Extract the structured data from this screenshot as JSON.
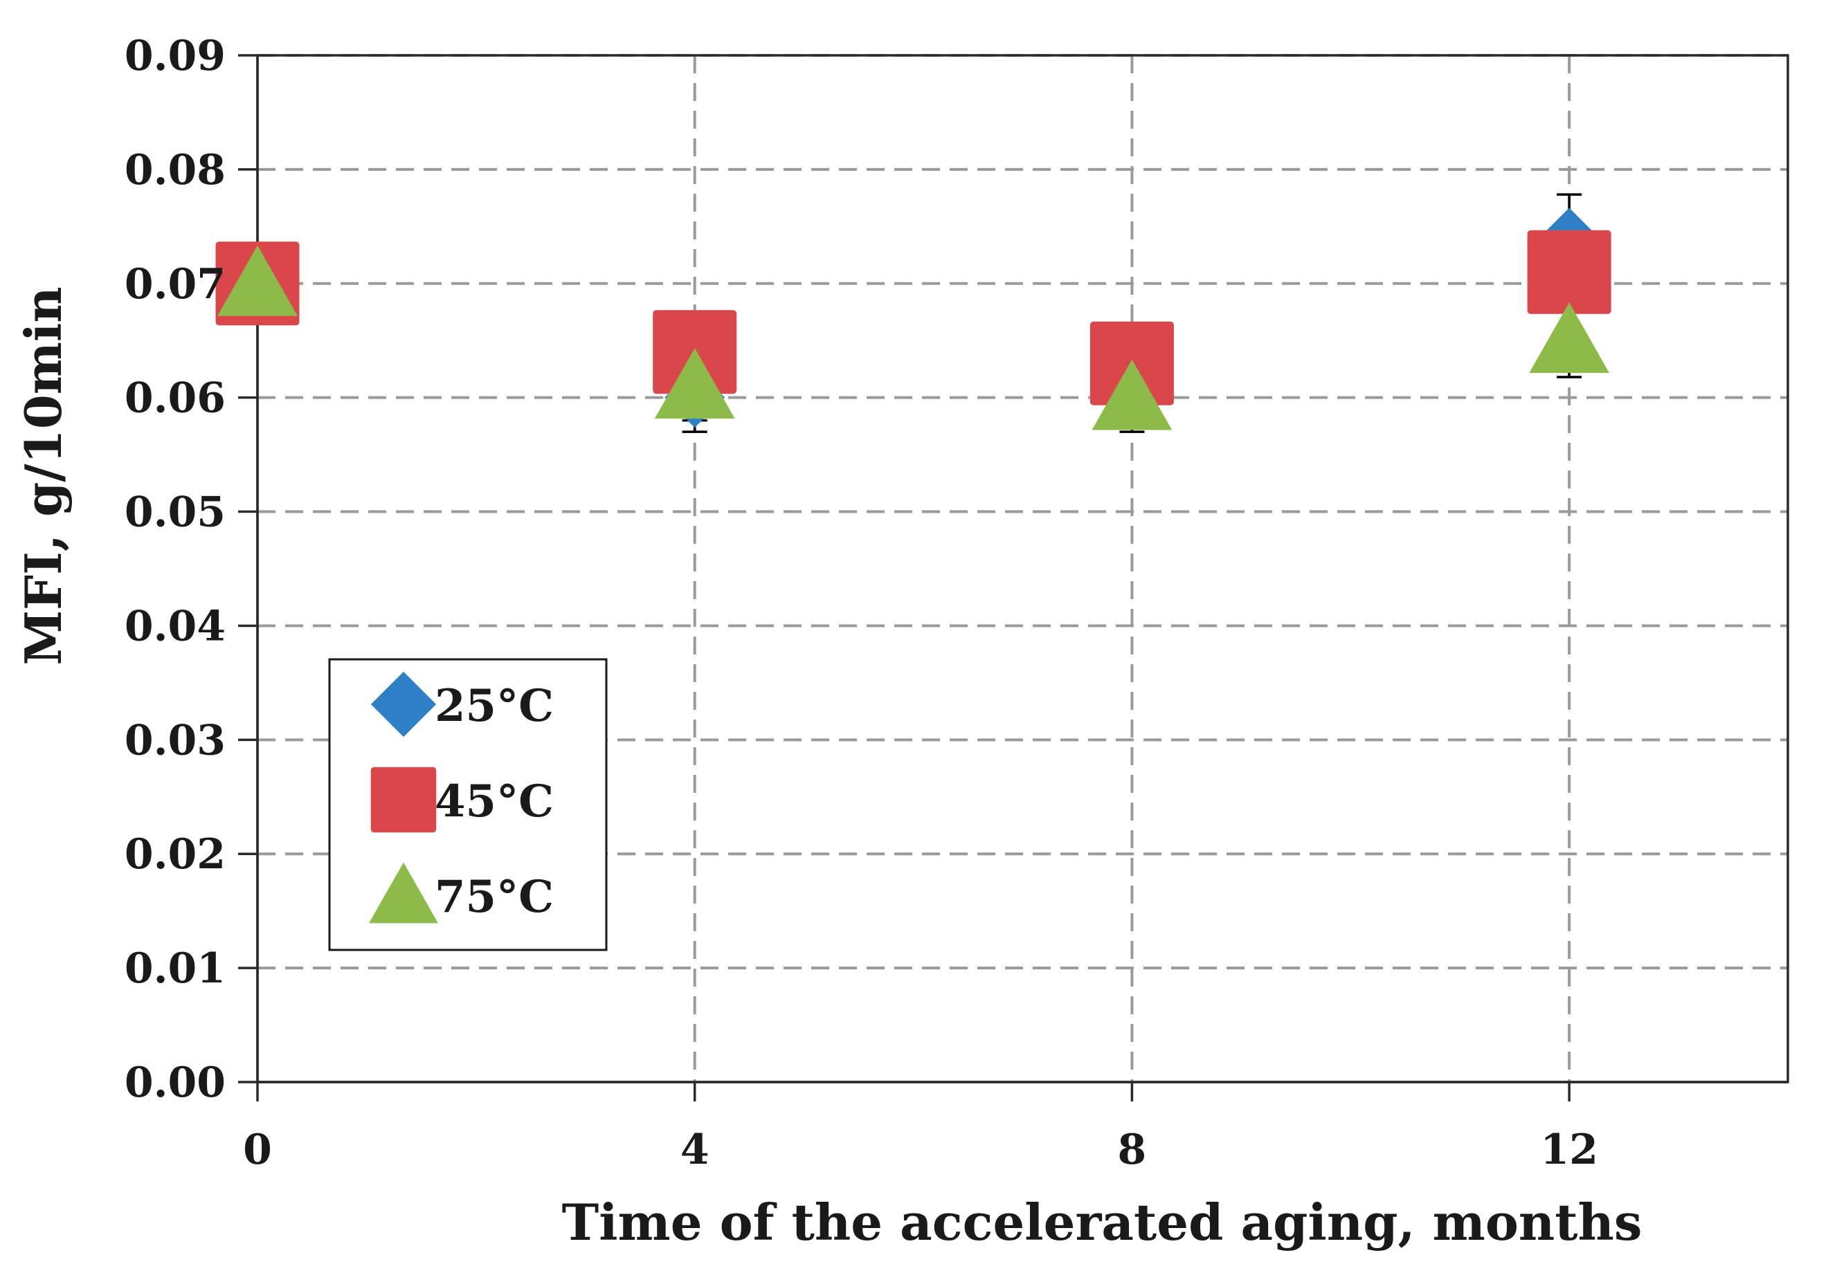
{
  "chart_data": {
    "type": "scatter",
    "title": "",
    "xlabel": "Time of the accelerated aging, months",
    "ylabel": "MFI, g/10min",
    "x": [
      0,
      4,
      8,
      12
    ],
    "xticks": [
      "0",
      "4",
      "8",
      "12"
    ],
    "yticks": [
      "0.00",
      "0.01",
      "0.02",
      "0.03",
      "0.04",
      "0.05",
      "0.06",
      "0.07",
      "0.08",
      "0.09"
    ],
    "xlim": [
      0,
      14
    ],
    "ylim": [
      0,
      0.09
    ],
    "grid": true,
    "legend_position": "lower-left",
    "series": [
      {
        "name": "25°C",
        "marker": "diamond",
        "color": "#2e80c6",
        "values": [
          0.07,
          0.06,
          0.062,
          0.074
        ],
        "errors": [
          0.0035,
          0.003,
          0.003,
          0.0038
        ]
      },
      {
        "name": "45°C",
        "marker": "square",
        "color": "#d9474b",
        "values": [
          0.07,
          0.064,
          0.063,
          0.071
        ],
        "errors": [
          0.0035,
          0.0032,
          0.0032,
          0.0035
        ]
      },
      {
        "name": "75°C",
        "marker": "triangle",
        "color": "#8dbb4a",
        "values": [
          0.07,
          0.061,
          0.06,
          0.065
        ],
        "errors": [
          0.0035,
          0.003,
          0.003,
          0.0032
        ]
      }
    ]
  }
}
